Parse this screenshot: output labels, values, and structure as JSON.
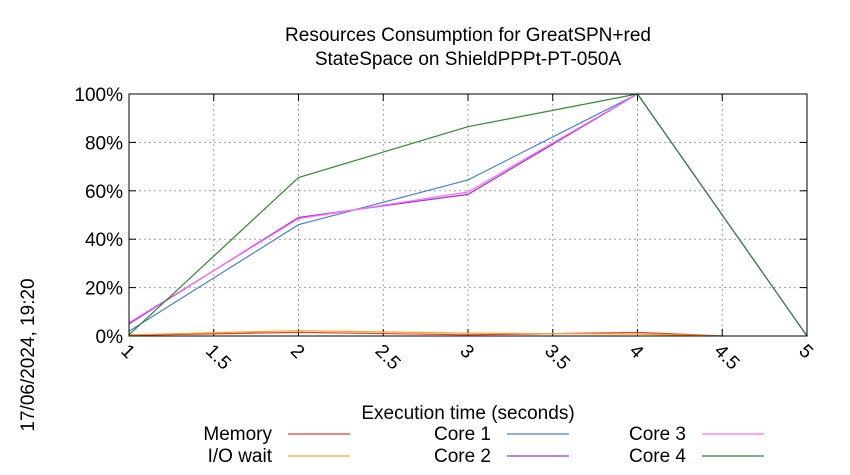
{
  "timestamp": "17/06/2024, 19:20",
  "chart_data": {
    "type": "line",
    "title": [
      "Resources Consumption for GreatSPN+red",
      "StateSpace on ShieldPPPt-PT-050A"
    ],
    "xlabel": "Execution time (seconds)",
    "ylabel": "",
    "xlim": [
      1,
      5
    ],
    "ylim": [
      0,
      100
    ],
    "xticks": [
      1,
      1.5,
      2,
      2.5,
      3,
      3.5,
      4,
      4.5,
      5
    ],
    "xtick_labels": [
      "1",
      "1.5",
      "2",
      "2.5",
      "3",
      "3.5",
      "4",
      "4.5",
      "5"
    ],
    "yticks": [
      0,
      20,
      40,
      60,
      80,
      100
    ],
    "ytick_labels": [
      "0%",
      "20%",
      "40%",
      "60%",
      "80%",
      "100%"
    ],
    "grid": true,
    "legend_position": "bottom",
    "series": [
      {
        "name": "Memory",
        "color": "#e8402a",
        "x": [
          1,
          2,
          3,
          4,
          4.5
        ],
        "y": [
          0.3,
          1.5,
          0.5,
          1.5,
          0
        ]
      },
      {
        "name": "I/O wait",
        "color": "#f5a623",
        "x": [
          1,
          2,
          3,
          4,
          4.5
        ],
        "y": [
          0.5,
          2.2,
          1.2,
          0.8,
          0
        ]
      },
      {
        "name": "Core 1",
        "color": "#4a7fd4",
        "x": [
          1,
          2,
          3,
          4,
          5
        ],
        "y": [
          2,
          46,
          64.5,
          100,
          0
        ]
      },
      {
        "name": "Core 2",
        "color": "#9b30d9",
        "x": [
          1,
          2,
          3,
          4,
          5
        ],
        "y": [
          5,
          49,
          58.5,
          100,
          0
        ]
      },
      {
        "name": "Core 3",
        "color": "#ff66ff",
        "x": [
          1,
          2,
          3,
          4,
          5
        ],
        "y": [
          5.5,
          48.5,
          59.5,
          100,
          0
        ]
      },
      {
        "name": "Core 4",
        "color": "#2e8b2e",
        "x": [
          1,
          2,
          3,
          4,
          5
        ],
        "y": [
          0.5,
          65.5,
          86.5,
          100,
          0
        ]
      }
    ]
  }
}
